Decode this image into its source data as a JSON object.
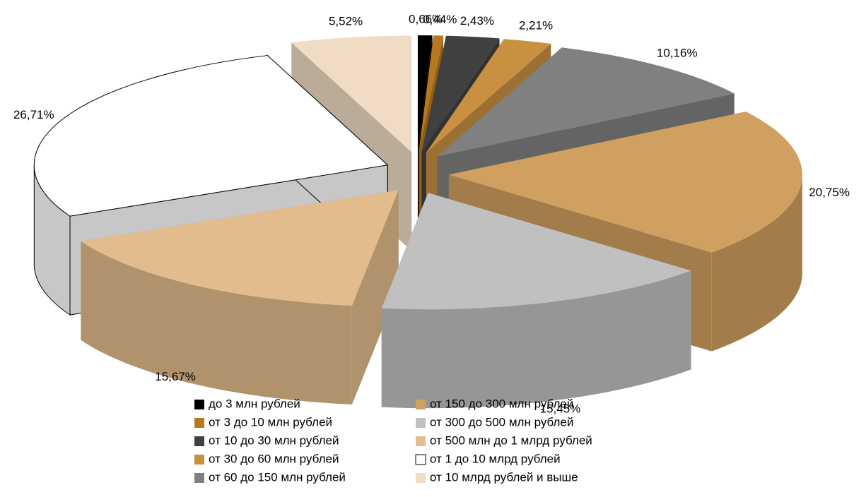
{
  "chart_data": {
    "type": "pie",
    "categories": [
      "до 3 млн рублей",
      "от 3 до 10 млн рублей",
      "от 10 до 30 млн рублей",
      "от 30 до 60 млн рублей",
      "от 60 до 150 млн рублей",
      "от 150 до 300 млн рублей",
      "от 300 до 500 млн рублей",
      "от 500 млн до 1 млрд рублей",
      "от 1 до 10 млрд рублей",
      "от 10 млрд рублей и выше"
    ],
    "values": [
      0.66,
      0.44,
      2.43,
      2.21,
      10.16,
      20.75,
      15.45,
      15.67,
      26.71,
      5.52
    ],
    "value_labels": [
      "0,66%",
      "0,44%",
      "2,43%",
      "2,21%",
      "10,16%",
      "20,75%",
      "15,45%",
      "15,67%",
      "26,71%",
      "5,52%"
    ],
    "colors": [
      "#000000",
      "#b87820",
      "#404040",
      "#c89040",
      "#808080",
      "#d0a060",
      "#c0c0c0",
      "#e2bc8c",
      "#ffffff",
      "#f0dcc4"
    ]
  }
}
